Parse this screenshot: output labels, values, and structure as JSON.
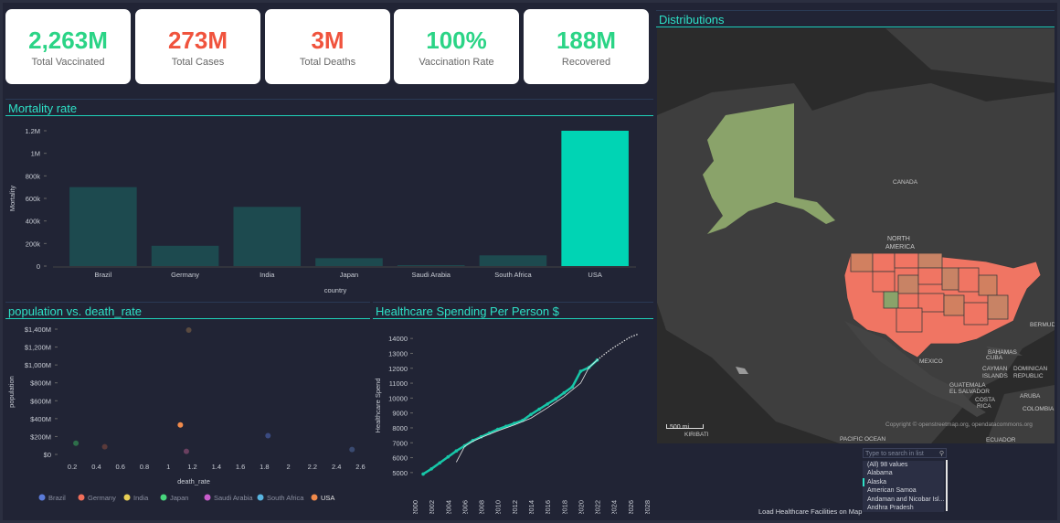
{
  "kpis": [
    {
      "value": "2,263M",
      "label": "Total Vaccinated",
      "color": "#2bd486"
    },
    {
      "value": "273M",
      "label": "Total Cases",
      "color": "#f0533d"
    },
    {
      "value": "3M",
      "label": "Total Deaths",
      "color": "#f0533d"
    },
    {
      "value": "100%",
      "label": "Vaccination Rate",
      "color": "#2bd486"
    },
    {
      "value": "188M",
      "label": "Recovered",
      "color": "#2bd486"
    }
  ],
  "panels": {
    "mortality": "Mortality rate",
    "scatter": "population vs. death_rate",
    "healthcare": "Healthcare Spending Per Person $",
    "distributions": "Distributions"
  },
  "chart_data": [
    {
      "type": "bar",
      "title": "Mortality rate",
      "xlabel": "country",
      "ylabel": "Mortality",
      "categories": [
        "Brazil",
        "Germany",
        "India",
        "Japan",
        "Saudi Arabia",
        "South Africa",
        "USA"
      ],
      "values": [
        700000,
        180000,
        525000,
        70000,
        8000,
        95000,
        1200000
      ],
      "ylim": [
        0,
        1200000
      ],
      "yticks": [
        "1.2M",
        "1M",
        "800k",
        "600k",
        "400k",
        "200k",
        "0"
      ],
      "colors": {
        "bar": "#1d4a4f",
        "highlight": "#00d4b4"
      }
    },
    {
      "type": "scatter",
      "title": "population vs. death_rate",
      "xlabel": "death_rate",
      "ylabel": "population",
      "xlim": [
        0.1,
        2.65
      ],
      "xticks": [
        "0.2",
        "0.4",
        "0.6",
        "0.8",
        "1",
        "1.2",
        "1.4",
        "1.6",
        "1.8",
        "2",
        "2.2",
        "2.4",
        "2.6"
      ],
      "yticks": [
        "$1,400M",
        "$1,200M",
        "$1,000M",
        "$800M",
        "$600M",
        "$400M",
        "$200M",
        "$0"
      ],
      "ylim": [
        0,
        1400
      ],
      "points": [
        {
          "x": 0.23,
          "y": 125,
          "c": "#2e6e4a"
        },
        {
          "x": 0.47,
          "y": 85,
          "c": "#5a3a3a"
        },
        {
          "x": 1.1,
          "y": 330,
          "c": "#f08a4b"
        },
        {
          "x": 1.15,
          "y": 35,
          "c": "#6a4060"
        },
        {
          "x": 1.17,
          "y": 1390,
          "c": "#5a4a40"
        },
        {
          "x": 1.83,
          "y": 210,
          "c": "#3a4a80"
        },
        {
          "x": 2.53,
          "y": 55,
          "c": "#3a4a70"
        }
      ],
      "legend": [
        {
          "name": "Brazil",
          "color": "#5b7bd8"
        },
        {
          "name": "Germany",
          "color": "#f06e5a"
        },
        {
          "name": "India",
          "color": "#e8cf55"
        },
        {
          "name": "Japan",
          "color": "#48d67d"
        },
        {
          "name": "Saudi Arabia",
          "color": "#c85ccb"
        },
        {
          "name": "South Africa",
          "color": "#58b4e0"
        },
        {
          "name": "USA",
          "color": "#f08a4b"
        }
      ]
    },
    {
      "type": "line",
      "title": "Healthcare Spending Per Person $",
      "ylabel": "Healthcare Spend",
      "xlim": [
        2000,
        2028
      ],
      "ylim": [
        4500,
        14500
      ],
      "yticks": [
        "14000",
        "13000",
        "12000",
        "11000",
        "10000",
        "9000",
        "8000",
        "7000",
        "6000",
        "5000"
      ],
      "xticks": [
        "2000",
        "2002",
        "2004",
        "2006",
        "2008",
        "2010",
        "2012",
        "2014",
        "2016",
        "2018",
        "2020",
        "2022",
        "2024",
        "2026",
        "2028"
      ],
      "series": [
        {
          "name": "",
          "values": [
            [
              2001,
              4900
            ],
            [
              2002,
              5250
            ],
            [
              2003,
              5650
            ],
            [
              2004,
              6050
            ],
            [
              2005,
              6450
            ],
            [
              2006,
              6800
            ],
            [
              2007,
              7150
            ],
            [
              2008,
              7400
            ],
            [
              2009,
              7650
            ],
            [
              2010,
              7900
            ],
            [
              2011,
              8100
            ],
            [
              2012,
              8300
            ],
            [
              2013,
              8500
            ],
            [
              2014,
              8900
            ],
            [
              2015,
              9250
            ],
            [
              2016,
              9600
            ],
            [
              2017,
              9950
            ],
            [
              2018,
              10350
            ],
            [
              2019,
              10750
            ],
            [
              2020,
              11800
            ],
            [
              2021,
              12050
            ],
            [
              2022,
              12550
            ]
          ]
        }
      ],
      "forecast": [
        [
          2022,
          12550
        ],
        [
          2023,
          13000
        ],
        [
          2024,
          13400
        ],
        [
          2025,
          13750
        ],
        [
          2026,
          14100
        ],
        [
          2027,
          14300
        ]
      ],
      "trend": [
        [
          2005,
          5700
        ],
        [
          2006,
          6750
        ],
        [
          2007,
          7100
        ],
        [
          2008,
          7350
        ],
        [
          2010,
          7800
        ],
        [
          2012,
          8200
        ],
        [
          2014,
          8650
        ],
        [
          2016,
          9350
        ],
        [
          2018,
          10100
        ],
        [
          2020,
          11000
        ],
        [
          2021,
          12050
        ],
        [
          2022,
          12550
        ]
      ],
      "colors": {
        "line": "#17c7a8"
      }
    }
  ],
  "map": {
    "copyright": "Copyright © openstreetmap.org, opendatacommons.org",
    "scale": "500 mi",
    "labels": {
      "canada": "CANADA",
      "north_america": "NORTH\nAMERICA",
      "mexico": "MEXICO",
      "cuba": "CUBA",
      "bahamas": "BAHAMAS",
      "bermuda": "BERMUD",
      "cayman": "CAYMAN\nISLANDS",
      "dominican": "DOMINICAN\nREPUBLIC",
      "guatemala": "GUATEMALA",
      "el_salvador": "EL SALVADOR",
      "costa_rica": "COSTA\nRICA",
      "aruba": "ARUBA",
      "pacific": "PACIFIC OCEAN",
      "kiribati": "KIRIBATI",
      "ecuador": "ECUADOR",
      "colombia": "COLOMBIA"
    }
  },
  "filter": {
    "placeholder": "Type to search in list",
    "items": [
      "(All) 98 values",
      "Alabama",
      "Alaska",
      "American Samoa",
      "Andaman and Nicobar Isl...",
      "Andhra Pradesh"
    ],
    "selected_index": 2
  },
  "load_text": "Load Healthcare Facilities on Map"
}
